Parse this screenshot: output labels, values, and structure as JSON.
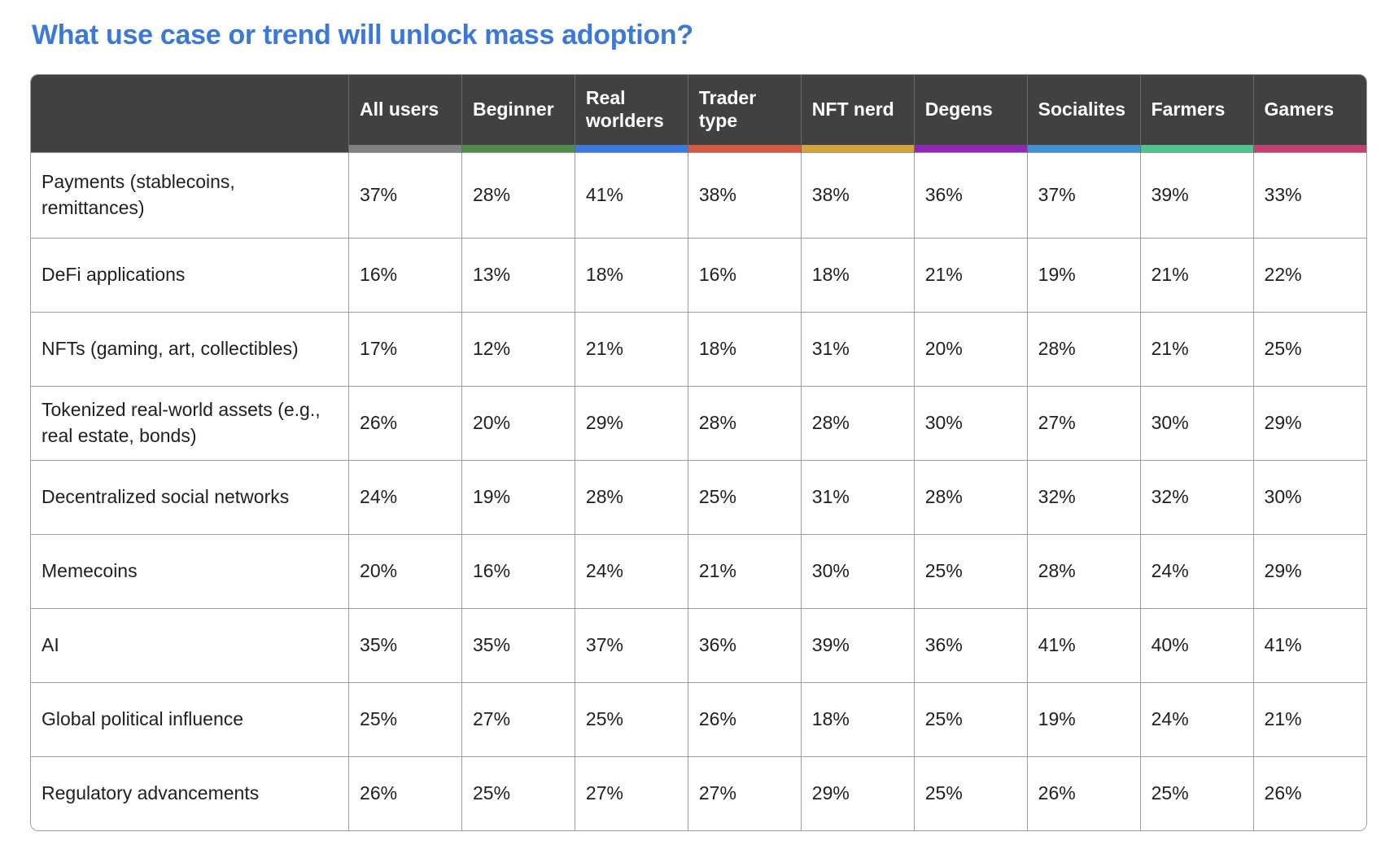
{
  "page": {
    "title": "What use case or trend will unlock mass adoption?"
  },
  "colors": {
    "title_blue": "#3b78d8",
    "header_background": "#414141",
    "header_text": "#ffffff",
    "grid_border": "#9d9d9d"
  },
  "chart_data": {
    "type": "table",
    "title": "What use case or trend will unlock mass adoption?",
    "columns": [
      {
        "label": "All users",
        "color": "#828282"
      },
      {
        "label": "Beginner",
        "color": "#4e8c4a"
      },
      {
        "label": "Real worlders",
        "color": "#3b7adf"
      },
      {
        "label": "Trader type",
        "color": "#d65a3d"
      },
      {
        "label": "NFT nerd",
        "color": "#d3a43b"
      },
      {
        "label": "Degens",
        "color": "#9127b9"
      },
      {
        "label": "Socialites",
        "color": "#4190cf"
      },
      {
        "label": "Farmers",
        "color": "#53c291"
      },
      {
        "label": "Gamers",
        "color": "#c44072"
      }
    ],
    "rows": [
      {
        "label": "Payments (stablecoins, remittances)",
        "values": [
          "37%",
          "28%",
          "41%",
          "38%",
          "38%",
          "36%",
          "37%",
          "39%",
          "33%"
        ]
      },
      {
        "label": "DeFi applications",
        "values": [
          "16%",
          "13%",
          "18%",
          "16%",
          "18%",
          "21%",
          "19%",
          "21%",
          "22%"
        ]
      },
      {
        "label": "NFTs (gaming, art, collectibles)",
        "values": [
          "17%",
          "12%",
          "21%",
          "18%",
          "31%",
          "20%",
          "28%",
          "21%",
          "25%"
        ]
      },
      {
        "label": "Tokenized real-world assets (e.g., real estate, bonds)",
        "values": [
          "26%",
          "20%",
          "29%",
          "28%",
          "28%",
          "30%",
          "27%",
          "30%",
          "29%"
        ]
      },
      {
        "label": "Decentralized social networks",
        "values": [
          "24%",
          "19%",
          "28%",
          "25%",
          "31%",
          "28%",
          "32%",
          "32%",
          "30%"
        ]
      },
      {
        "label": "Memecoins",
        "values": [
          "20%",
          "16%",
          "24%",
          "21%",
          "30%",
          "25%",
          "28%",
          "24%",
          "29%"
        ]
      },
      {
        "label": "AI",
        "values": [
          "35%",
          "35%",
          "37%",
          "36%",
          "39%",
          "36%",
          "41%",
          "40%",
          "41%"
        ]
      },
      {
        "label": "Global political influence",
        "values": [
          "25%",
          "27%",
          "25%",
          "26%",
          "18%",
          "25%",
          "19%",
          "24%",
          "21%"
        ]
      },
      {
        "label": "Regulatory advancements",
        "values": [
          "26%",
          "25%",
          "27%",
          "27%",
          "29%",
          "25%",
          "26%",
          "25%",
          "26%"
        ]
      }
    ]
  }
}
